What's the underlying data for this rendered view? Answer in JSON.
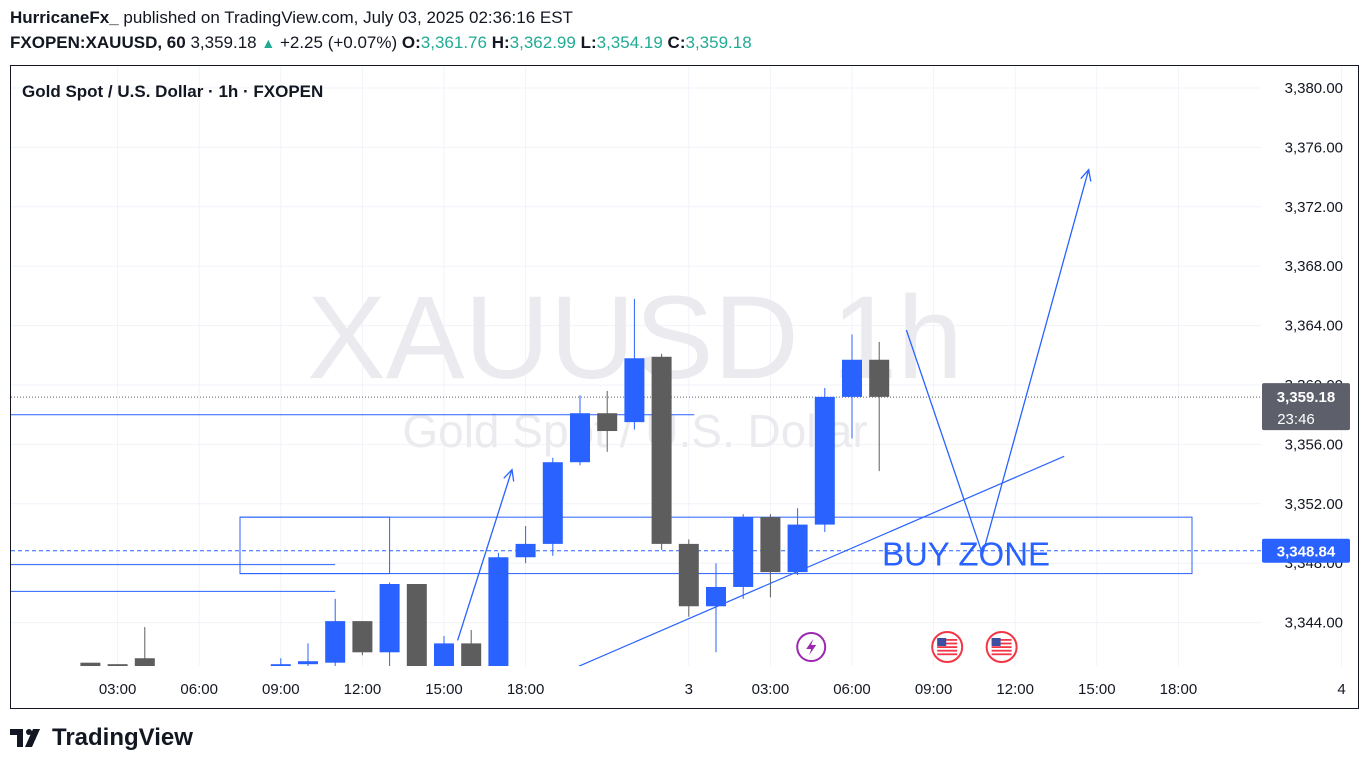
{
  "header": {
    "author": "HurricaneFx_",
    "published_text": "published on TradingView.com, July 03, 2025 02:36:16 EST",
    "symbol": "FXOPEN:XAUUSD, 60",
    "last": "3,359.18",
    "up_arrow": "▲",
    "change": "+2.25 (+0.07%)",
    "o_label": "O:",
    "o_value": "3,361.76",
    "h_label": "H:",
    "h_value": "3,362.99",
    "l_label": "L:",
    "l_value": "3,354.19",
    "c_label": "C:",
    "c_value": "3,359.18"
  },
  "footer": {
    "brand": "TradingView",
    "logo_icon": "tradingview-logo-icon"
  },
  "chart_data": {
    "type": "candlestick",
    "title": "Gold Spot / U.S. Dollar · 1h · FXOPEN",
    "watermark_symbol": "XAUUSD 1h",
    "watermark_name": "Gold Spot / U.S. Dollar",
    "ylim": [
      3340.5,
      3381.5
    ],
    "y_ticks": [
      "3,380.00",
      "3,376.00",
      "3,372.00",
      "3,368.00",
      "3,364.00",
      "3,360.00",
      "3,356.00",
      "3,352.00",
      "3,348.00",
      "3,344.00"
    ],
    "y_tick_values": [
      3380,
      3376,
      3372,
      3368,
      3364,
      3360,
      3356,
      3352,
      3348,
      3344
    ],
    "x_ticks": [
      "03:00",
      "06:00",
      "09:00",
      "12:00",
      "15:00",
      "18:00",
      "3",
      "03:00",
      "06:00",
      "09:00",
      "12:00",
      "15:00",
      "18:00",
      "4"
    ],
    "x_tick_hours": [
      3,
      6,
      9,
      12,
      15,
      18,
      24,
      27,
      30,
      33,
      36,
      39,
      42,
      48
    ],
    "candles": [
      {
        "t": 2,
        "o": 3341.3,
        "h": 3341.3,
        "l": 3341.0,
        "c": 3341.0
      },
      {
        "t": 3,
        "o": 3341.2,
        "h": 3341.2,
        "l": 3341.0,
        "c": 3341.0
      },
      {
        "t": 4,
        "o": 3341.6,
        "h": 3343.7,
        "l": 3341.0,
        "c": 3341.0
      },
      {
        "t": 9,
        "o": 3340.9,
        "h": 3341.6,
        "l": 3340.8,
        "c": 3341.2
      },
      {
        "t": 10,
        "o": 3341.2,
        "h": 3342.6,
        "l": 3340.9,
        "c": 3341.4
      },
      {
        "t": 11,
        "o": 3341.3,
        "h": 3345.6,
        "l": 3340.9,
        "c": 3344.1
      },
      {
        "t": 12,
        "o": 3344.1,
        "h": 3344.1,
        "l": 3341.8,
        "c": 3342.0
      },
      {
        "t": 13,
        "o": 3342.0,
        "h": 3346.7,
        "l": 3340.9,
        "c": 3346.6
      },
      {
        "t": 14,
        "o": 3346.6,
        "h": 3346.6,
        "l": 3340.9,
        "c": 3341.0
      },
      {
        "t": 15,
        "o": 3341.0,
        "h": 3343.1,
        "l": 3340.9,
        "c": 3342.6
      },
      {
        "t": 16,
        "o": 3342.6,
        "h": 3343.5,
        "l": 3340.9,
        "c": 3341.0
      },
      {
        "t": 17,
        "o": 3341.0,
        "h": 3348.7,
        "l": 3340.9,
        "c": 3348.4
      },
      {
        "t": 18,
        "o": 3348.4,
        "h": 3350.5,
        "l": 3348.0,
        "c": 3349.3
      },
      {
        "t": 19,
        "o": 3349.3,
        "h": 3355.1,
        "l": 3348.5,
        "c": 3354.8
      },
      {
        "t": 20,
        "o": 3354.8,
        "h": 3359.3,
        "l": 3354.6,
        "c": 3358.1
      },
      {
        "t": 21,
        "o": 3358.1,
        "h": 3359.6,
        "l": 3355.5,
        "c": 3356.9
      },
      {
        "t": 22,
        "o": 3357.5,
        "h": 3365.8,
        "l": 3357.0,
        "c": 3361.8
      },
      {
        "t": 23,
        "o": 3361.9,
        "h": 3362.1,
        "l": 3348.9,
        "c": 3349.3
      },
      {
        "t": 24,
        "o": 3349.3,
        "h": 3349.6,
        "l": 3344.4,
        "c": 3345.1
      },
      {
        "t": 25,
        "o": 3345.1,
        "h": 3348.0,
        "l": 3342.0,
        "c": 3346.4
      },
      {
        "t": 26,
        "o": 3346.4,
        "h": 3351.3,
        "l": 3345.6,
        "c": 3351.1
      },
      {
        "t": 27,
        "o": 3351.1,
        "h": 3351.3,
        "l": 3345.7,
        "c": 3347.4
      },
      {
        "t": 28,
        "o": 3347.4,
        "h": 3351.7,
        "l": 3347.2,
        "c": 3350.6
      },
      {
        "t": 29,
        "o": 3350.6,
        "h": 3359.8,
        "l": 3350.1,
        "c": 3359.2
      },
      {
        "t": 30,
        "o": 3359.2,
        "h": 3363.4,
        "l": 3356.4,
        "c": 3361.7
      },
      {
        "t": 31,
        "o": 3361.7,
        "h": 3362.9,
        "l": 3354.2,
        "c": 3359.2
      }
    ],
    "last_price_label": "3,359.18",
    "countdown_label": "23:46",
    "zone_price_label": "3,348.84",
    "last_price": 3359.18,
    "zone_price": 3348.84,
    "annotations": {
      "buy_zone_label": "BUY ZONE",
      "buy_zone": {
        "t1": 7.5,
        "t2": 42.5,
        "p_top": 3351.1,
        "p_bottom": 3347.3
      },
      "left_zone": {
        "t1": 7.5,
        "t2": 13.0,
        "p_top": 3351.1,
        "p_bottom": 3347.3
      },
      "resistance_line": {
        "t1": 0,
        "t2": 24.2,
        "price": 3358.0
      },
      "level_line_1": {
        "t1": 0,
        "t2": 11.0,
        "price": 3347.9
      },
      "level_line_2": {
        "t1": 0,
        "t2": 11.0,
        "price": 3346.1
      },
      "trendline": {
        "t1": 19.5,
        "p1": 3340.7,
        "t2": 37.8,
        "p2": 3355.2
      },
      "arrow_up_small": {
        "t1": 15.5,
        "p1": 3342.8,
        "t2": 17.5,
        "p2": 3354.3
      },
      "projection": [
        {
          "t": 32.0,
          "p": 3363.7
        },
        {
          "t": 34.8,
          "p": 3348.6
        },
        {
          "t": 38.7,
          "p": 3374.5
        }
      ]
    },
    "event_icons": [
      {
        "name": "lightning-event-icon",
        "t": 28.5,
        "kind": "bolt"
      },
      {
        "name": "us-flag-event-icon",
        "t": 33.5,
        "kind": "flag"
      },
      {
        "name": "us-flag-event-icon",
        "t": 35.5,
        "kind": "flag"
      }
    ],
    "colors": {
      "up": "#2962ff",
      "down": "#5d5d5d",
      "accent": "#2962ff",
      "teal": "#22ab94",
      "bolt": "#9c27b0",
      "flag_red": "#f23645"
    }
  }
}
